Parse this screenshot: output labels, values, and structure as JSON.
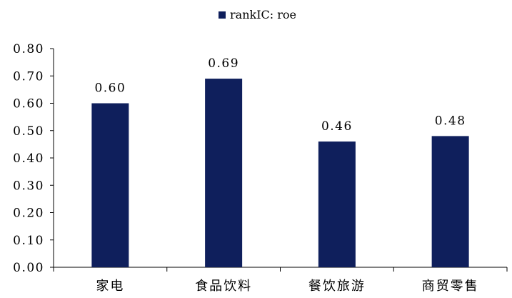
{
  "chart_data": {
    "type": "bar",
    "categories": [
      "家电",
      "食品饮料",
      "餐饮旅游",
      "商贸零售"
    ],
    "series": [
      {
        "name": "rankIC: roe",
        "values": [
          0.6,
          0.69,
          0.46,
          0.48
        ]
      }
    ],
    "data_labels": [
      "0.60",
      "0.69",
      "0.46",
      "0.48"
    ],
    "ylim": [
      0.0,
      0.8
    ],
    "y_ticks": [
      "0.00",
      "0.10",
      "0.20",
      "0.30",
      "0.40",
      "0.50",
      "0.60",
      "0.70",
      "0.80"
    ],
    "grid": false,
    "legend_position": "top-center",
    "bar_color": "#0f1f5c"
  }
}
